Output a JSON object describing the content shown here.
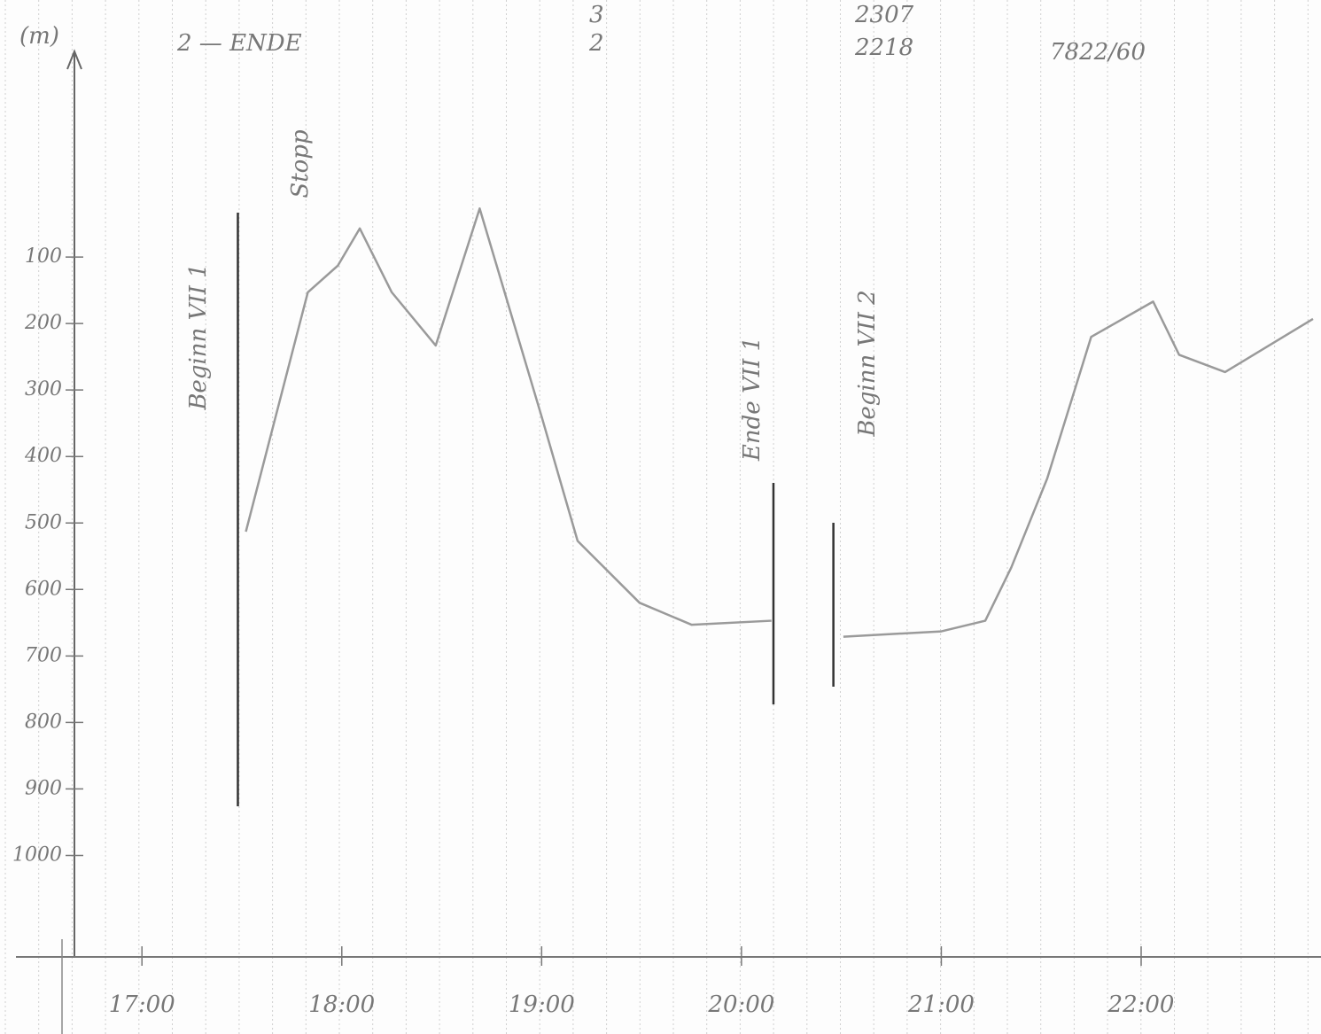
{
  "chart_data": {
    "type": "line",
    "y_unit": "(m)",
    "header_notes": [
      "2 — ENDE",
      "3",
      "2",
      "2307",
      "2218",
      "7822/60"
    ],
    "annotations": [
      "Beginn VII 1",
      "Stopp",
      "Ende VII 1",
      "Beginn VII 2"
    ],
    "x": [
      17.52,
      17.83,
      17.98,
      18.09,
      18.25,
      18.47,
      18.69,
      19.0,
      19.18,
      19.49,
      19.75,
      20.15,
      20.33,
      20.51,
      21.0,
      21.22,
      21.35,
      21.53,
      21.75,
      22.06,
      22.19,
      22.42,
      22.86
    ],
    "series": [
      {
        "color": "#9a9a9a",
        "values": [
          513,
          153,
          113,
          57,
          153,
          233,
          27,
          340,
          527,
          620,
          653,
          647,
          null,
          671,
          663,
          647,
          567,
          433,
          220,
          167,
          247,
          273,
          193
        ]
      }
    ],
    "markers": [
      17.48,
      20.16,
      20.46
    ],
    "xlim": [
      16.6,
      22.9
    ],
    "xticks": [
      {
        "value": 17,
        "label": "17:00"
      },
      {
        "value": 18,
        "label": "18:00"
      },
      {
        "value": 19,
        "label": "19:00"
      },
      {
        "value": 20,
        "label": "20:00"
      },
      {
        "value": 21,
        "label": "21:00"
      },
      {
        "value": 22,
        "label": "22:00"
      }
    ],
    "ylim": [
      1150,
      -200
    ],
    "yticks": [
      100,
      200,
      300,
      400,
      500,
      600,
      700,
      800,
      900,
      1000
    ],
    "grid": true
  }
}
